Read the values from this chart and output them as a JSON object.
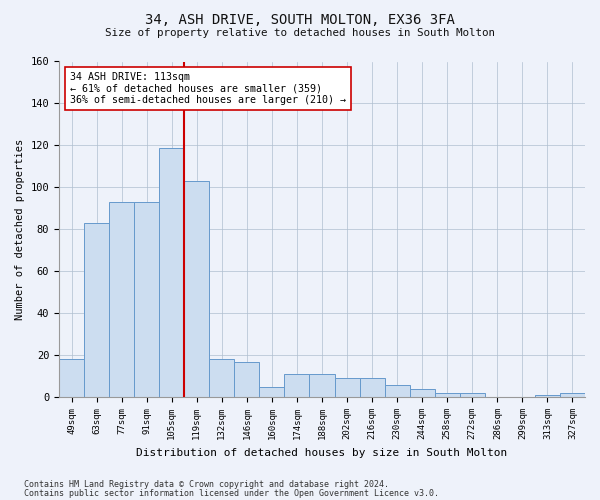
{
  "title": "34, ASH DRIVE, SOUTH MOLTON, EX36 3FA",
  "subtitle": "Size of property relative to detached houses in South Molton",
  "xlabel": "Distribution of detached houses by size in South Molton",
  "ylabel": "Number of detached properties",
  "footnote1": "Contains HM Land Registry data © Crown copyright and database right 2024.",
  "footnote2": "Contains public sector information licensed under the Open Government Licence v3.0.",
  "bar_labels": [
    "49sqm",
    "63sqm",
    "77sqm",
    "91sqm",
    "105sqm",
    "119sqm",
    "132sqm",
    "146sqm",
    "160sqm",
    "174sqm",
    "188sqm",
    "202sqm",
    "216sqm",
    "230sqm",
    "244sqm",
    "258sqm",
    "272sqm",
    "286sqm",
    "299sqm",
    "313sqm",
    "327sqm"
  ],
  "bar_values": [
    18,
    83,
    93,
    93,
    119,
    103,
    18,
    17,
    5,
    11,
    11,
    9,
    9,
    6,
    4,
    2,
    2,
    0,
    0,
    1,
    2
  ],
  "bar_color": "#ccddf0",
  "bar_edge_color": "#6699cc",
  "ylim": [
    0,
    160
  ],
  "yticks": [
    0,
    20,
    40,
    60,
    80,
    100,
    120,
    140,
    160
  ],
  "property_line_x": 4.5,
  "property_line_color": "#cc0000",
  "annotation_line1": "34 ASH DRIVE: 113sqm",
  "annotation_line2": "← 61% of detached houses are smaller (359)",
  "annotation_line3": "36% of semi-detached houses are larger (210) →",
  "annotation_box_color": "#ffffff",
  "annotation_box_edge": "#cc0000",
  "background_color": "#eef2fa"
}
